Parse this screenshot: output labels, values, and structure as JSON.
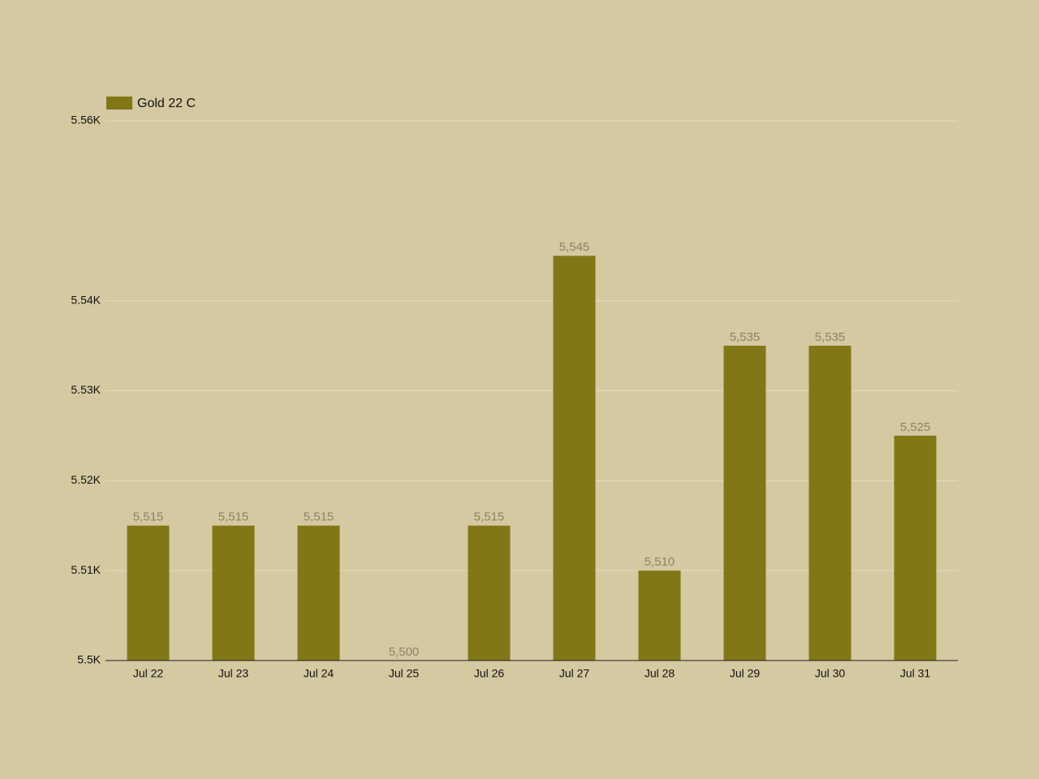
{
  "chart_data": {
    "type": "bar",
    "categories": [
      "Jul 22",
      "Jul 23",
      "Jul 24",
      "Jul 25",
      "Jul 26",
      "Jul 27",
      "Jul 28",
      "Jul 29",
      "Jul 30",
      "Jul 31"
    ],
    "series": [
      {
        "name": "Gold 22 C",
        "color": "#827717",
        "values": [
          5515,
          5515,
          5515,
          5500,
          5515,
          5545,
          5510,
          5535,
          5535,
          5525
        ],
        "value_labels": [
          "5,515",
          "5,515",
          "5,515",
          "5,500",
          "5,515",
          "5,545",
          "5,510",
          "5,535",
          "5,535",
          "5,525"
        ]
      }
    ],
    "ylim": [
      5500,
      5560
    ],
    "yticks": [
      {
        "value": 5500,
        "label": "5.5K"
      },
      {
        "value": 5510,
        "label": "5.51K"
      },
      {
        "value": 5520,
        "label": "5.52K"
      },
      {
        "value": 5530,
        "label": "5.53K"
      },
      {
        "value": 5540,
        "label": "5.54K"
      },
      {
        "value": 5560,
        "label": "5.56K"
      }
    ],
    "grid": true,
    "legend": "top-left"
  }
}
